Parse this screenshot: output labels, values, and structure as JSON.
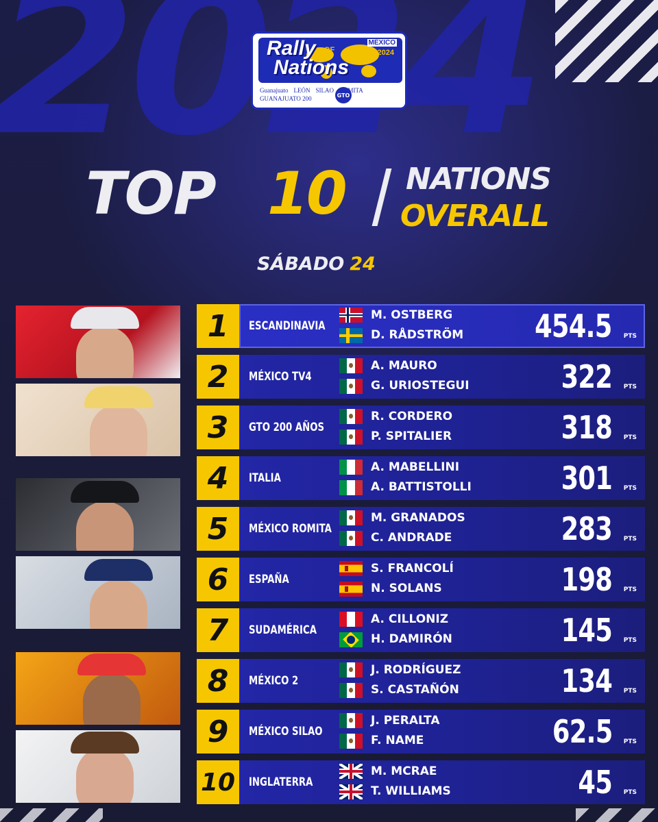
{
  "background_year": "2024",
  "logo": {
    "title_line1": "Rally",
    "title_of": "OF",
    "title_line2": "Nations",
    "country": "MÉXICO",
    "year": "2024",
    "sponsors": [
      "Guanajuato",
      "LEÓN",
      "SILAO",
      "ROMITA",
      "GTO",
      "GUANAJUATO 200"
    ]
  },
  "title": {
    "top": "TOP",
    "ten": "10",
    "nations": "NATIONS",
    "overall": "OVERALL"
  },
  "day": {
    "label": "SÁBADO",
    "number": "24"
  },
  "points_unit": "PTS",
  "colors": {
    "accent_yellow": "#f6c700",
    "panel_blue": "#2326a6",
    "background": "#1a1b3a"
  },
  "standings": [
    {
      "rank": "1",
      "team": "ESCANDINAVIA",
      "drivers": [
        {
          "name": "M. OSTBERG",
          "flag": "norway-flag"
        },
        {
          "name": "D. RÅDSTRÖM",
          "flag": "sweden-flag"
        }
      ],
      "points": "454.5"
    },
    {
      "rank": "2",
      "team": "MÉXICO TV4",
      "drivers": [
        {
          "name": "A. MAURO",
          "flag": "mexico-flag"
        },
        {
          "name": "G. URIOSTEGUI",
          "flag": "mexico-flag"
        }
      ],
      "points": "322"
    },
    {
      "rank": "3",
      "team": "GTO 200 AÑOS",
      "drivers": [
        {
          "name": "R. CORDERO",
          "flag": "mexico-flag"
        },
        {
          "name": "P. SPITALIER",
          "flag": "mexico-flag"
        }
      ],
      "points": "318"
    },
    {
      "rank": "4",
      "team": "ITALIA",
      "drivers": [
        {
          "name": "A. MABELLINI",
          "flag": "italy-flag"
        },
        {
          "name": "A. BATTISTOLLI",
          "flag": "italy-flag"
        }
      ],
      "points": "301"
    },
    {
      "rank": "5",
      "team": "MÉXICO ROMITA",
      "drivers": [
        {
          "name": "M. GRANADOS",
          "flag": "mexico-flag"
        },
        {
          "name": "C. ANDRADE",
          "flag": "mexico-flag"
        }
      ],
      "points": "283"
    },
    {
      "rank": "6",
      "team": "ESPAÑA",
      "drivers": [
        {
          "name": "S. FRANCOLÍ",
          "flag": "spain-flag"
        },
        {
          "name": "N. SOLANS",
          "flag": "spain-flag"
        }
      ],
      "points": "198"
    },
    {
      "rank": "7",
      "team": "SUDAMÉRICA",
      "drivers": [
        {
          "name": "A. CILLONIZ",
          "flag": "peru-flag"
        },
        {
          "name": "H. DAMIRÓN",
          "flag": "brazil-flag"
        }
      ],
      "points": "145"
    },
    {
      "rank": "8",
      "team": "MÉXICO 2",
      "drivers": [
        {
          "name": "J. RODRÍGUEZ",
          "flag": "mexico-flag"
        },
        {
          "name": "S. CASTAÑÓN",
          "flag": "mexico-flag"
        }
      ],
      "points": "134"
    },
    {
      "rank": "9",
      "team": "MÉXICO SILAO",
      "drivers": [
        {
          "name": "J. PERALTA",
          "flag": "mexico-flag"
        },
        {
          "name": "F. NAME",
          "flag": "mexico-flag"
        }
      ],
      "points": "62.5"
    },
    {
      "rank": "10",
      "team": "INGLATERRA",
      "drivers": [
        {
          "name": "M. MCRAE",
          "flag": "uk-flag"
        },
        {
          "name": "T. WILLIAMS",
          "flag": "uk-flag"
        }
      ],
      "points": "45"
    }
  ]
}
